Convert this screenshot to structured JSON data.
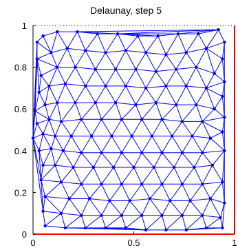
{
  "chart_data": {
    "type": "mesh",
    "title": "Delaunay, step 5",
    "xlabel": "",
    "ylabel": "",
    "xlim": [
      0,
      1
    ],
    "ylim": [
      0,
      1
    ],
    "xticks": [
      {
        "value": 0,
        "label": "0"
      },
      {
        "value": 0.5,
        "label": "0.5"
      },
      {
        "value": 1,
        "label": "1"
      }
    ],
    "yticks": [
      {
        "value": 0,
        "label": "0"
      },
      {
        "value": 0.2,
        "label": "0.2"
      },
      {
        "value": 0.4,
        "label": "0.4"
      },
      {
        "value": 0.6,
        "label": "0.6"
      },
      {
        "value": 0.8,
        "label": "0.8"
      },
      {
        "value": 1,
        "label": "1"
      }
    ],
    "grid": false,
    "boundary": {
      "bottom_color": "#ff0000",
      "right_color": "#ff0000",
      "top_style": "dotted",
      "left_style": "solid-black"
    },
    "mesh_color": "#0000ff",
    "points": [
      [
        0.02,
        0.92
      ],
      [
        0.05,
        0.95
      ],
      [
        0.12,
        0.97
      ],
      [
        0.22,
        0.97
      ],
      [
        0.32,
        0.96
      ],
      [
        0.42,
        0.96
      ],
      [
        0.52,
        0.95
      ],
      [
        0.62,
        0.95
      ],
      [
        0.72,
        0.96
      ],
      [
        0.82,
        0.96
      ],
      [
        0.92,
        0.98
      ],
      [
        0.95,
        0.92
      ],
      [
        0.02,
        0.84
      ],
      [
        0.09,
        0.87
      ],
      [
        0.17,
        0.89
      ],
      [
        0.26,
        0.88
      ],
      [
        0.36,
        0.87
      ],
      [
        0.46,
        0.88
      ],
      [
        0.56,
        0.87
      ],
      [
        0.66,
        0.86
      ],
      [
        0.76,
        0.87
      ],
      [
        0.86,
        0.89
      ],
      [
        0.94,
        0.84
      ],
      [
        0.04,
        0.76
      ],
      [
        0.12,
        0.8
      ],
      [
        0.21,
        0.8
      ],
      [
        0.31,
        0.79
      ],
      [
        0.41,
        0.79
      ],
      [
        0.51,
        0.79
      ],
      [
        0.61,
        0.78
      ],
      [
        0.71,
        0.79
      ],
      [
        0.81,
        0.8
      ],
      [
        0.9,
        0.77
      ],
      [
        0.95,
        0.73
      ],
      [
        0.03,
        0.68
      ],
      [
        0.08,
        0.71
      ],
      [
        0.16,
        0.72
      ],
      [
        0.26,
        0.71
      ],
      [
        0.36,
        0.71
      ],
      [
        0.46,
        0.71
      ],
      [
        0.56,
        0.7
      ],
      [
        0.66,
        0.71
      ],
      [
        0.76,
        0.71
      ],
      [
        0.86,
        0.7
      ],
      [
        0.94,
        0.66
      ],
      [
        0.01,
        0.59
      ],
      [
        0.06,
        0.62
      ],
      [
        0.12,
        0.63
      ],
      [
        0.21,
        0.63
      ],
      [
        0.31,
        0.63
      ],
      [
        0.41,
        0.63
      ],
      [
        0.51,
        0.62
      ],
      [
        0.61,
        0.63
      ],
      [
        0.71,
        0.62
      ],
      [
        0.81,
        0.62
      ],
      [
        0.9,
        0.6
      ],
      [
        0.95,
        0.56
      ],
      [
        0.02,
        0.53
      ],
      [
        0.08,
        0.55
      ],
      [
        0.14,
        0.54
      ],
      [
        0.24,
        0.55
      ],
      [
        0.34,
        0.55
      ],
      [
        0.44,
        0.55
      ],
      [
        0.54,
        0.55
      ],
      [
        0.64,
        0.55
      ],
      [
        0.74,
        0.54
      ],
      [
        0.84,
        0.54
      ],
      [
        0.94,
        0.49
      ],
      [
        0.0,
        0.46
      ],
      [
        0.05,
        0.48
      ],
      [
        0.11,
        0.47
      ],
      [
        0.19,
        0.47
      ],
      [
        0.29,
        0.47
      ],
      [
        0.39,
        0.47
      ],
      [
        0.49,
        0.47
      ],
      [
        0.59,
        0.47
      ],
      [
        0.69,
        0.47
      ],
      [
        0.79,
        0.47
      ],
      [
        0.88,
        0.46
      ],
      [
        0.03,
        0.4
      ],
      [
        0.09,
        0.41
      ],
      [
        0.15,
        0.4
      ],
      [
        0.24,
        0.39
      ],
      [
        0.34,
        0.39
      ],
      [
        0.44,
        0.39
      ],
      [
        0.54,
        0.39
      ],
      [
        0.64,
        0.39
      ],
      [
        0.74,
        0.39
      ],
      [
        0.84,
        0.39
      ],
      [
        0.95,
        0.4
      ],
      [
        0.05,
        0.33
      ],
      [
        0.11,
        0.33
      ],
      [
        0.2,
        0.32
      ],
      [
        0.3,
        0.32
      ],
      [
        0.4,
        0.32
      ],
      [
        0.5,
        0.32
      ],
      [
        0.6,
        0.32
      ],
      [
        0.7,
        0.32
      ],
      [
        0.8,
        0.32
      ],
      [
        0.89,
        0.33
      ],
      [
        0.04,
        0.26
      ],
      [
        0.14,
        0.25
      ],
      [
        0.24,
        0.24
      ],
      [
        0.34,
        0.24
      ],
      [
        0.44,
        0.24
      ],
      [
        0.54,
        0.24
      ],
      [
        0.64,
        0.24
      ],
      [
        0.74,
        0.24
      ],
      [
        0.84,
        0.24
      ],
      [
        0.94,
        0.25
      ],
      [
        0.06,
        0.18
      ],
      [
        0.18,
        0.17
      ],
      [
        0.28,
        0.17
      ],
      [
        0.38,
        0.16
      ],
      [
        0.48,
        0.16
      ],
      [
        0.58,
        0.17
      ],
      [
        0.68,
        0.16
      ],
      [
        0.78,
        0.16
      ],
      [
        0.88,
        0.17
      ],
      [
        0.95,
        0.15
      ],
      [
        0.05,
        0.11
      ],
      [
        0.14,
        0.1
      ],
      [
        0.24,
        0.09
      ],
      [
        0.34,
        0.09
      ],
      [
        0.44,
        0.09
      ],
      [
        0.54,
        0.09
      ],
      [
        0.64,
        0.09
      ],
      [
        0.74,
        0.09
      ],
      [
        0.84,
        0.09
      ],
      [
        0.93,
        0.08
      ],
      [
        0.06,
        0.04
      ],
      [
        0.16,
        0.03
      ],
      [
        0.26,
        0.03
      ],
      [
        0.36,
        0.03
      ],
      [
        0.46,
        0.03
      ],
      [
        0.56,
        0.02
      ],
      [
        0.66,
        0.02
      ],
      [
        0.76,
        0.02
      ],
      [
        0.86,
        0.03
      ],
      [
        0.94,
        0.03
      ]
    ]
  }
}
